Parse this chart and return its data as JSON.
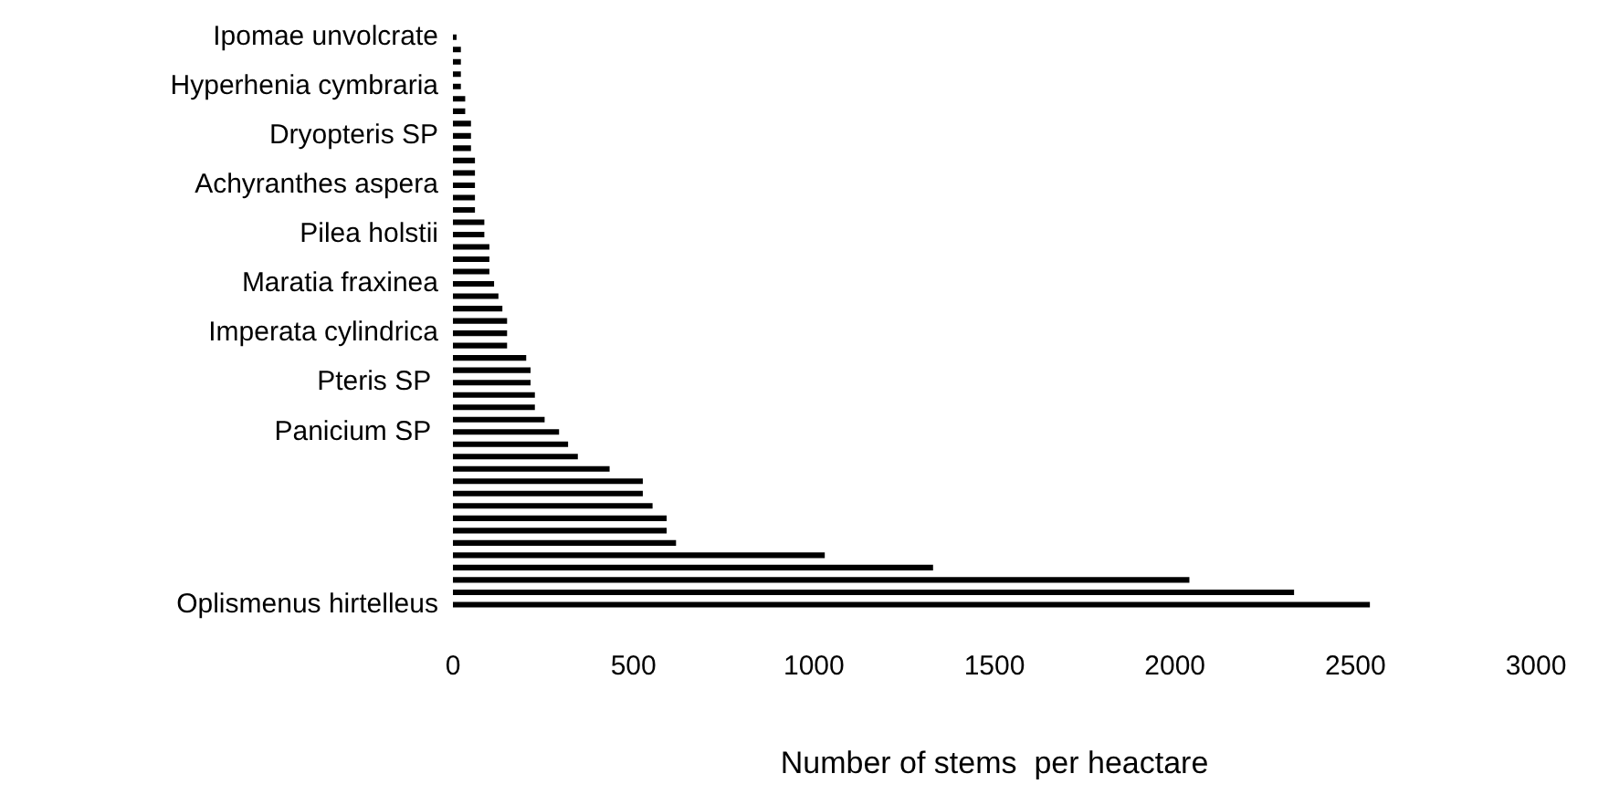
{
  "chart_data": {
    "type": "bar",
    "orientation": "horizontal",
    "xlabel": "Number of stems  per heactare",
    "categories": [
      "Ipomae unvolcrate",
      null,
      null,
      null,
      "Hyperhenia cymbraria",
      null,
      null,
      null,
      "Dryopteris SP",
      null,
      null,
      null,
      "Achyranthes aspera",
      null,
      null,
      null,
      "Pilea holstii",
      null,
      null,
      null,
      "Maratia fraxinea",
      null,
      null,
      null,
      "Imperata cylindrica",
      null,
      null,
      null,
      "Pteris SP ",
      null,
      null,
      null,
      "Panicium SP ",
      null,
      null,
      null,
      null,
      null,
      null,
      null,
      null,
      null,
      null,
      null,
      null,
      null,
      "Oplismenus hirtelleus"
    ],
    "values": [
      10,
      22,
      22,
      22,
      22,
      34,
      34,
      50,
      50,
      50,
      61,
      61,
      61,
      61,
      61,
      87,
      87,
      101,
      101,
      101,
      114,
      126,
      137,
      150,
      150,
      150,
      203,
      215,
      215,
      227,
      227,
      254,
      294,
      319,
      346,
      434,
      526,
      526,
      553,
      592,
      592,
      618,
      1030,
      1330,
      2040,
      2330,
      2540
    ],
    "color": "#000000",
    "xlim": [
      0,
      3000
    ],
    "xticks": [
      0,
      500,
      1000,
      1500,
      2000,
      2500,
      3000
    ],
    "grid": false,
    "legend": false
  }
}
